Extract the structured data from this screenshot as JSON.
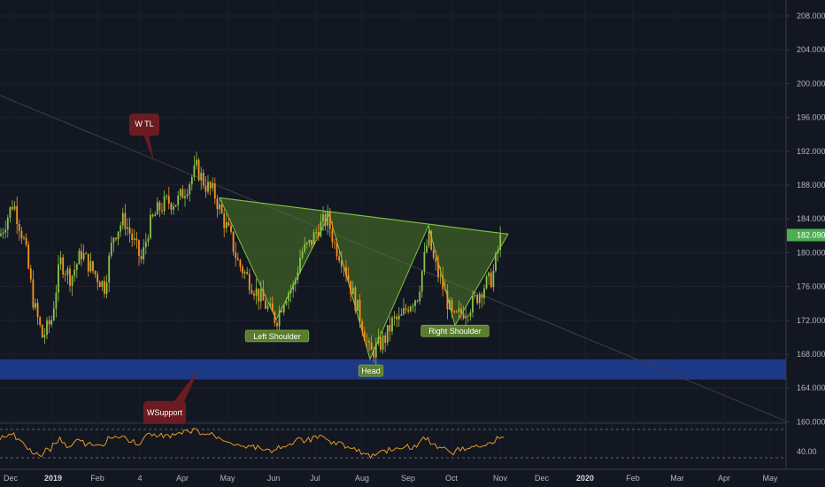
{
  "chart_data": {
    "type": "candlestick",
    "symbol": "",
    "price_axis": {
      "ticks": [
        "208.000",
        "204.000",
        "200.000",
        "196.000",
        "192.000",
        "188.000",
        "184.000",
        "180.000",
        "176.000",
        "172.000",
        "168.000",
        "164.000",
        "160.000"
      ],
      "range": [
        156,
        210
      ],
      "current_price": "182.090"
    },
    "time_axis": {
      "ticks": [
        {
          "label": "Dec",
          "bold": false
        },
        {
          "label": "2019",
          "bold": true
        },
        {
          "label": "Feb",
          "bold": false
        },
        {
          "label": "4",
          "bold": false
        },
        {
          "label": "Apr",
          "bold": false
        },
        {
          "label": "May",
          "bold": false
        },
        {
          "label": "Jun",
          "bold": false
        },
        {
          "label": "Jul",
          "bold": false
        },
        {
          "label": "Aug",
          "bold": false
        },
        {
          "label": "Sep",
          "bold": false
        },
        {
          "label": "Oct",
          "bold": false
        },
        {
          "label": "Nov",
          "bold": false
        },
        {
          "label": "Dec",
          "bold": false
        },
        {
          "label": "2020",
          "bold": true
        },
        {
          "label": "Feb",
          "bold": false
        },
        {
          "label": "Mar",
          "bold": false
        },
        {
          "label": "Apr",
          "bold": false
        },
        {
          "label": "May",
          "bold": false
        }
      ]
    },
    "price_path": [
      [
        0,
        182
      ],
      [
        15,
        186
      ],
      [
        28,
        181
      ],
      [
        38,
        174
      ],
      [
        48,
        170
      ],
      [
        58,
        172
      ],
      [
        68,
        179
      ],
      [
        80,
        177
      ],
      [
        92,
        180
      ],
      [
        104,
        178
      ],
      [
        118,
        176
      ],
      [
        128,
        182
      ],
      [
        140,
        184
      ],
      [
        152,
        181
      ],
      [
        160,
        179
      ],
      [
        168,
        183
      ],
      [
        178,
        185
      ],
      [
        188,
        186
      ],
      [
        200,
        186
      ],
      [
        212,
        188
      ],
      [
        222,
        190
      ],
      [
        232,
        188
      ],
      [
        242,
        187
      ],
      [
        252,
        184
      ],
      [
        260,
        182
      ],
      [
        268,
        179
      ],
      [
        280,
        177
      ],
      [
        292,
        175
      ],
      [
        312,
        172
      ],
      [
        322,
        175
      ],
      [
        332,
        176
      ],
      [
        340,
        180
      ],
      [
        350,
        181
      ],
      [
        360,
        183
      ],
      [
        370,
        184
      ],
      [
        378,
        181
      ],
      [
        388,
        179
      ],
      [
        396,
        176
      ],
      [
        408,
        172
      ],
      [
        418,
        168
      ],
      [
        428,
        169
      ],
      [
        436,
        170
      ],
      [
        444,
        172
      ],
      [
        452,
        172
      ],
      [
        462,
        174
      ],
      [
        472,
        175
      ],
      [
        484,
        182
      ],
      [
        490,
        179
      ],
      [
        500,
        176
      ],
      [
        512,
        172
      ],
      [
        522,
        173
      ],
      [
        534,
        174
      ],
      [
        546,
        176
      ],
      [
        556,
        177
      ],
      [
        566,
        182
      ]
    ],
    "zones": [
      {
        "name": "support-zone",
        "y_from": 165,
        "y_to": 167.4,
        "color": "#1e3a8a"
      }
    ],
    "lines": [
      {
        "name": "wtl-trendline",
        "from": [
          0,
          198.6
        ],
        "to": [
          890,
          160.0
        ],
        "color": "#2a2e39"
      }
    ],
    "pattern": {
      "name": "inverse head and shoulders",
      "points": [
        [
          248,
          186.5
        ],
        [
          312,
          172.1
        ],
        [
          372,
          184.5
        ],
        [
          418,
          167.4
        ],
        [
          484,
          183.2
        ],
        [
          514,
          171.4
        ],
        [
          574,
          182.2
        ]
      ],
      "fill": "#4e7a26",
      "stroke": "#7fc241"
    },
    "labels": [
      {
        "text": "Left Shoulder",
        "at": [
          313,
          170.1
        ]
      },
      {
        "text": "Head",
        "at": [
          419,
          166.0
        ]
      },
      {
        "text": "Right Shoulder",
        "at": [
          514,
          170.7
        ]
      }
    ],
    "callouts": [
      {
        "text": "W TL",
        "at": [
          162,
          195.2
        ]
      },
      {
        "text": "WSupport",
        "at": [
          186,
          161.1
        ]
      }
    ],
    "indicator": {
      "type": "rsi",
      "label": "40.00",
      "color": "#f7a61e"
    },
    "colors": {
      "up": "#8bc34a",
      "down": "#f7931e",
      "background": "#131722",
      "last_price_bg": "#4caf50"
    }
  }
}
